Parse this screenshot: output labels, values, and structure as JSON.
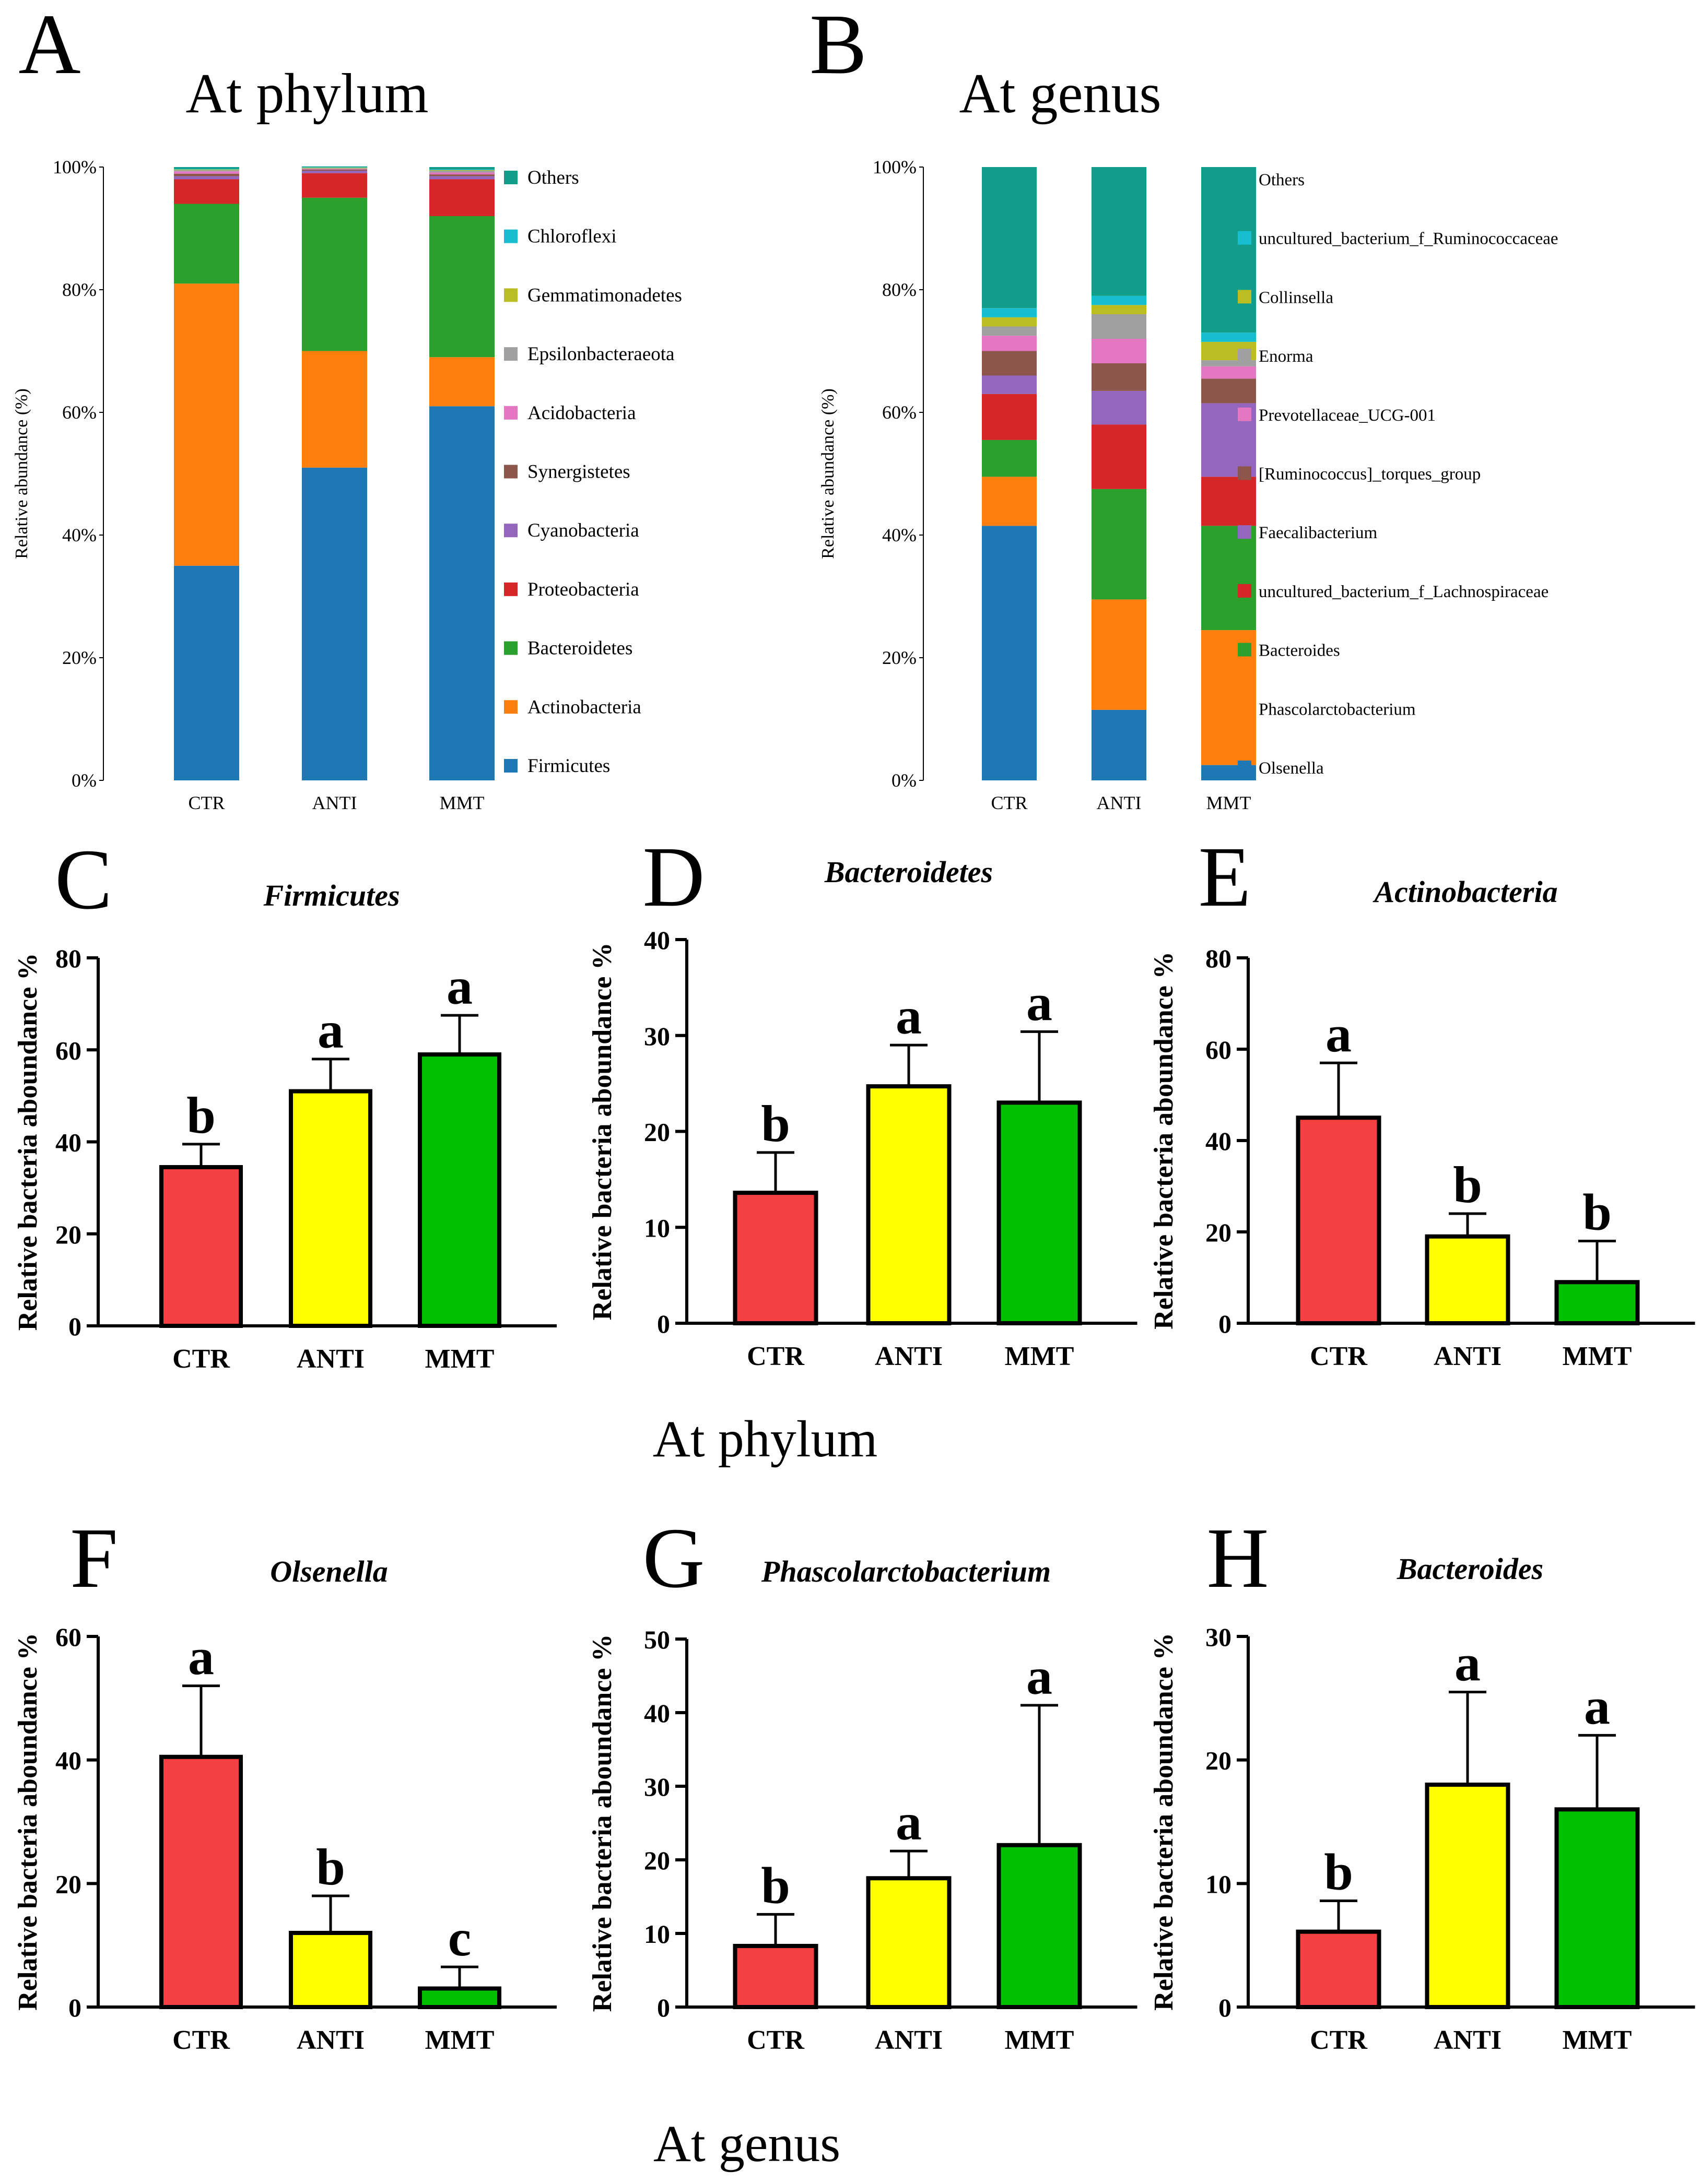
{
  "colors": {
    "firmicutes": "#1f77b4",
    "actinobacteria": "#ff7f0e",
    "bacteroidetes": "#2ca02c",
    "proteobacteria": "#d62728",
    "cyanobacteria": "#9467bd",
    "synergistetes": "#8c564b",
    "acidobacteria": "#e377c2",
    "epsilon": "#a0a0a0",
    "gemma": "#bcbd22",
    "chloroflexi": "#17becf",
    "others": "#129c8a",
    "ctr_bar": "#f44040",
    "anti_bar": "#ffff00",
    "mmt_bar": "#00c000"
  },
  "section_labels": {
    "phylum": "At phylum",
    "genus": "At genus"
  },
  "chart_data": [
    {
      "id": "A",
      "panel_letter": "A",
      "type": "bar",
      "stacked": true,
      "title": "At phylum",
      "ylabel": "Relative abundance (%)",
      "ylim": [
        0,
        100
      ],
      "yticks": [
        "0%",
        "20%",
        "40%",
        "60%",
        "80%",
        "100%"
      ],
      "categories": [
        "CTR",
        "ANTI",
        "MMT"
      ],
      "legend": [
        "Others",
        "Chloroflexi",
        "Gemmatimonadetes",
        "Epsilonbacteraeota",
        "Acidobacteria",
        "Synergistetes",
        "Cyanobacteria",
        "Proteobacteria",
        "Bacteroidetes",
        "Actinobacteria",
        "Firmicutes"
      ],
      "legend_colors": [
        "#129c8a",
        "#17becf",
        "#bcbd22",
        "#a0a0a0",
        "#e377c2",
        "#8c564b",
        "#9467bd",
        "#d62728",
        "#2ca02c",
        "#ff7f0e",
        "#1f77b4"
      ],
      "series": [
        {
          "name": "Firmicutes",
          "values": [
            35,
            51,
            61
          ]
        },
        {
          "name": "Actinobacteria",
          "values": [
            46,
            19,
            8
          ]
        },
        {
          "name": "Bacteroidetes",
          "values": [
            13,
            25,
            23
          ]
        },
        {
          "name": "Proteobacteria",
          "values": [
            4,
            4,
            6
          ]
        },
        {
          "name": "Cyanobacteria",
          "values": [
            0.5,
            0.4,
            0.5
          ]
        },
        {
          "name": "Synergistetes",
          "values": [
            0.4,
            0.2,
            0.3
          ]
        },
        {
          "name": "Acidobacteria",
          "values": [
            0.4,
            0.1,
            0.3
          ]
        },
        {
          "name": "Epsilonbacteraeota",
          "values": [
            0.2,
            0.1,
            0.3
          ]
        },
        {
          "name": "Gemmatimonadetes",
          "values": [
            0.1,
            0.1,
            0.1
          ]
        },
        {
          "name": "Chloroflexi",
          "values": [
            0.1,
            0.1,
            0.1
          ]
        },
        {
          "name": "Others",
          "values": [
            0.3,
            0.1,
            0.4
          ]
        }
      ]
    },
    {
      "id": "B",
      "panel_letter": "B",
      "type": "bar",
      "stacked": true,
      "title": "At genus",
      "ylabel": "Relative abundance (%)",
      "ylim": [
        0,
        100
      ],
      "yticks": [
        "0%",
        "20%",
        "40%",
        "60%",
        "80%",
        "100%"
      ],
      "categories": [
        "CTR",
        "ANTI",
        "MMT"
      ],
      "legend": [
        "Others",
        "uncultured_bacterium_f_Ruminococcaceae",
        "Collinsella",
        "Enorma",
        "Prevotellaceae_UCG-001",
        "[Ruminococcus]_torques_group",
        "Faecalibacterium",
        "uncultured_bacterium_f_Lachnospiraceae",
        "Bacteroides",
        "Phascolarctobacterium",
        "Olsenella"
      ],
      "legend_colors": [
        "#129c8a",
        "#17becf",
        "#bcbd22",
        "#a0a0a0",
        "#e377c2",
        "#8c564b",
        "#9467bd",
        "#d62728",
        "#2ca02c",
        "#ff7f0e",
        "#1f77b4"
      ],
      "series": [
        {
          "name": "Olsenella",
          "values": [
            41.5,
            11.5,
            2.5
          ]
        },
        {
          "name": "Phascolarctobacterium",
          "values": [
            8,
            18,
            22
          ]
        },
        {
          "name": "Bacteroides",
          "values": [
            6,
            18,
            17
          ]
        },
        {
          "name": "uncultured_bacterium_f_Lachnospiraceae",
          "values": [
            7.5,
            10.5,
            8
          ]
        },
        {
          "name": "Faecalibacterium",
          "values": [
            3,
            5.5,
            12
          ]
        },
        {
          "name": "[Ruminococcus]_torques_group",
          "values": [
            4,
            4.5,
            4
          ]
        },
        {
          "name": "Prevotellaceae_UCG-001",
          "values": [
            2.5,
            4,
            2
          ]
        },
        {
          "name": "Enorma",
          "values": [
            1.5,
            4,
            1
          ]
        },
        {
          "name": "Collinsella",
          "values": [
            1.5,
            1.5,
            3
          ]
        },
        {
          "name": "uncultured_bacterium_f_Ruminococcaceae",
          "values": [
            1.5,
            1.5,
            1.5
          ]
        },
        {
          "name": "Others",
          "values": [
            23,
            21,
            27
          ]
        }
      ]
    },
    {
      "id": "C",
      "panel_letter": "C",
      "type": "bar",
      "title": "Firmicutes",
      "ylabel": "Relative bacteria aboundance %",
      "ylim": [
        0,
        80
      ],
      "yticks": [
        0,
        20,
        40,
        60,
        80
      ],
      "categories": [
        "CTR",
        "ANTI",
        "MMT"
      ],
      "values": [
        34.5,
        51,
        59
      ],
      "errors": [
        5,
        7,
        8.5
      ],
      "letters": [
        "b",
        "a",
        "a"
      ]
    },
    {
      "id": "D",
      "panel_letter": "D",
      "type": "bar",
      "title": "Bacteroidetes",
      "ylabel": "Relative bacteria aboundance %",
      "ylim": [
        0,
        40
      ],
      "yticks": [
        0,
        10,
        20,
        30,
        40
      ],
      "categories": [
        "CTR",
        "ANTI",
        "MMT"
      ],
      "values": [
        13.6,
        24.7,
        23
      ],
      "errors": [
        4.2,
        4.3,
        7.4
      ],
      "letters": [
        "b",
        "a",
        "a"
      ]
    },
    {
      "id": "E",
      "panel_letter": "E",
      "type": "bar",
      "title": "Actinobacteria",
      "ylabel": "Relative bacteria aboundance %",
      "ylim": [
        0,
        80
      ],
      "yticks": [
        0,
        20,
        40,
        60,
        80
      ],
      "categories": [
        "CTR",
        "ANTI",
        "MMT"
      ],
      "values": [
        45,
        19,
        9
      ],
      "errors": [
        12,
        5,
        9
      ],
      "letters": [
        "a",
        "b",
        "b"
      ]
    },
    {
      "id": "F",
      "panel_letter": "F",
      "type": "bar",
      "title": "Olsenella",
      "ylabel": "Relative bacteria aboundance %",
      "ylim": [
        0,
        60
      ],
      "yticks": [
        0,
        20,
        40,
        60
      ],
      "categories": [
        "CTR",
        "ANTI",
        "MMT"
      ],
      "values": [
        40.5,
        12,
        3
      ],
      "errors": [
        11.5,
        6,
        3.5
      ],
      "letters": [
        "a",
        "b",
        "c"
      ]
    },
    {
      "id": "G",
      "panel_letter": "G",
      "type": "bar",
      "title": "Phascolarctobacterium",
      "ylabel": "Relative bacteria aboundance %",
      "ylim": [
        0,
        50
      ],
      "yticks": [
        0,
        10,
        20,
        30,
        40,
        50
      ],
      "categories": [
        "CTR",
        "ANTI",
        "MMT"
      ],
      "values": [
        8.3,
        17.5,
        22
      ],
      "errors": [
        4.3,
        3.7,
        19
      ],
      "letters": [
        "b",
        "a",
        "a"
      ]
    },
    {
      "id": "H",
      "panel_letter": "H",
      "type": "bar",
      "title": "Bacteroides",
      "ylabel": "Relative bacteria aboundance %",
      "ylim": [
        0,
        30
      ],
      "yticks": [
        0,
        10,
        20,
        30
      ],
      "categories": [
        "CTR",
        "ANTI",
        "MMT"
      ],
      "values": [
        6.1,
        18,
        16
      ],
      "errors": [
        2.5,
        7.5,
        6
      ],
      "letters": [
        "b",
        "a",
        "a"
      ]
    }
  ]
}
